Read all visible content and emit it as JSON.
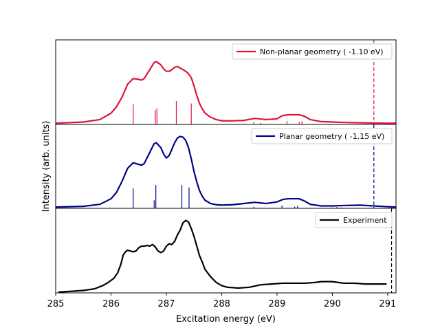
{
  "chart_data": {
    "type": "line",
    "xlabel": "Excitation energy (eV)",
    "ylabel": "Intensity (arb. units)",
    "xlim": [
      285,
      291.15
    ],
    "x_ticks": [
      "285",
      "286",
      "287",
      "288",
      "289",
      "290",
      "291"
    ],
    "x_tick_values": [
      285,
      286,
      287,
      288,
      289,
      290,
      291
    ],
    "panels": [
      {
        "name": "Non-planar geometry ( -1.10 eV)",
        "color": "#dc143c",
        "ylim": [
          0,
          1.05
        ],
        "x": [
          285.0,
          285.5,
          285.8,
          286.0,
          286.1,
          286.2,
          286.3,
          286.4,
          286.5,
          286.55,
          286.6,
          286.7,
          286.78,
          286.82,
          286.9,
          286.95,
          287.0,
          287.05,
          287.1,
          287.15,
          287.2,
          287.25,
          287.3,
          287.35,
          287.4,
          287.45,
          287.5,
          287.55,
          287.6,
          287.65,
          287.7,
          287.8,
          287.9,
          288.0,
          288.2,
          288.4,
          288.6,
          288.8,
          289.0,
          289.1,
          289.2,
          289.3,
          289.4,
          289.5,
          289.6,
          289.8,
          290.0,
          290.2,
          290.5,
          291.0,
          291.15
        ],
        "y": [
          0.015,
          0.03,
          0.06,
          0.14,
          0.22,
          0.34,
          0.5,
          0.57,
          0.56,
          0.55,
          0.57,
          0.68,
          0.77,
          0.78,
          0.74,
          0.69,
          0.66,
          0.66,
          0.68,
          0.71,
          0.72,
          0.7,
          0.68,
          0.66,
          0.63,
          0.58,
          0.48,
          0.36,
          0.26,
          0.19,
          0.14,
          0.09,
          0.06,
          0.045,
          0.045,
          0.05,
          0.075,
          0.06,
          0.07,
          0.11,
          0.12,
          0.12,
          0.12,
          0.1,
          0.06,
          0.035,
          0.03,
          0.025,
          0.02,
          0.015,
          0.015
        ],
        "sticks": [
          {
            "x": 286.4,
            "h": 0.25
          },
          {
            "x": 286.8,
            "h": 0.18
          },
          {
            "x": 286.83,
            "h": 0.2
          },
          {
            "x": 287.18,
            "h": 0.29
          },
          {
            "x": 287.45,
            "h": 0.26
          },
          {
            "x": 288.58,
            "h": 0.03
          },
          {
            "x": 288.7,
            "h": 0.02
          },
          {
            "x": 289.18,
            "h": 0.04
          },
          {
            "x": 289.4,
            "h": 0.03
          },
          {
            "x": 289.45,
            "h": 0.04
          }
        ],
        "threshold": 290.75
      },
      {
        "name": "Planar geometry ( -1.15 eV)",
        "color": "#00008b",
        "ylim": [
          0,
          1.05
        ],
        "x": [
          285.0,
          285.5,
          285.8,
          286.0,
          286.1,
          286.2,
          286.3,
          286.4,
          286.5,
          286.55,
          286.6,
          286.7,
          286.78,
          286.82,
          286.9,
          286.95,
          287.0,
          287.05,
          287.1,
          287.15,
          287.2,
          287.25,
          287.3,
          287.35,
          287.4,
          287.45,
          287.5,
          287.55,
          287.6,
          287.65,
          287.7,
          287.8,
          287.9,
          288.0,
          288.2,
          288.4,
          288.6,
          288.8,
          289.0,
          289.1,
          289.2,
          289.3,
          289.4,
          289.5,
          289.6,
          289.8,
          290.0,
          290.2,
          290.5,
          291.0,
          291.15
        ],
        "y": [
          0.015,
          0.025,
          0.05,
          0.12,
          0.2,
          0.34,
          0.5,
          0.57,
          0.55,
          0.54,
          0.56,
          0.7,
          0.81,
          0.82,
          0.76,
          0.68,
          0.63,
          0.66,
          0.74,
          0.82,
          0.88,
          0.9,
          0.89,
          0.85,
          0.76,
          0.62,
          0.46,
          0.33,
          0.22,
          0.15,
          0.1,
          0.06,
          0.045,
          0.04,
          0.045,
          0.06,
          0.075,
          0.06,
          0.08,
          0.11,
          0.12,
          0.12,
          0.12,
          0.09,
          0.05,
          0.03,
          0.03,
          0.035,
          0.04,
          0.02,
          0.015
        ],
        "sticks": [
          {
            "x": 286.4,
            "h": 0.25
          },
          {
            "x": 286.78,
            "h": 0.1
          },
          {
            "x": 286.81,
            "h": 0.29
          },
          {
            "x": 287.28,
            "h": 0.29
          },
          {
            "x": 287.41,
            "h": 0.26
          },
          {
            "x": 288.58,
            "h": 0.02
          },
          {
            "x": 289.09,
            "h": 0.035
          },
          {
            "x": 289.32,
            "h": 0.02
          },
          {
            "x": 289.37,
            "h": 0.03
          },
          {
            "x": 290.0,
            "h": 0.01
          },
          {
            "x": 290.08,
            "h": 0.015
          },
          {
            "x": 290.16,
            "h": 0.01
          }
        ],
        "threshold": 290.75
      },
      {
        "name": "Experiment",
        "color": "#000000",
        "ylim": [
          0,
          1.05
        ],
        "x": [
          285.05,
          285.3,
          285.5,
          285.7,
          285.85,
          285.95,
          286.05,
          286.12,
          286.18,
          286.22,
          286.26,
          286.3,
          286.4,
          286.45,
          286.5,
          286.55,
          286.6,
          286.65,
          286.7,
          286.75,
          286.8,
          286.85,
          286.9,
          286.95,
          287.0,
          287.05,
          287.1,
          287.15,
          287.2,
          287.25,
          287.3,
          287.35,
          287.4,
          287.45,
          287.5,
          287.55,
          287.6,
          287.65,
          287.7,
          287.8,
          287.9,
          288.0,
          288.1,
          288.3,
          288.5,
          288.7,
          288.9,
          289.1,
          289.3,
          289.5,
          289.7,
          289.8,
          290.0,
          290.2,
          290.4,
          290.6,
          290.8,
          290.98
        ],
        "y": [
          0.01,
          0.02,
          0.03,
          0.05,
          0.09,
          0.13,
          0.18,
          0.25,
          0.36,
          0.47,
          0.51,
          0.53,
          0.51,
          0.52,
          0.56,
          0.58,
          0.58,
          0.59,
          0.58,
          0.6,
          0.57,
          0.52,
          0.5,
          0.52,
          0.58,
          0.61,
          0.6,
          0.64,
          0.72,
          0.78,
          0.87,
          0.9,
          0.88,
          0.8,
          0.7,
          0.58,
          0.46,
          0.38,
          0.29,
          0.2,
          0.13,
          0.09,
          0.07,
          0.06,
          0.07,
          0.1,
          0.11,
          0.12,
          0.12,
          0.12,
          0.13,
          0.14,
          0.14,
          0.12,
          0.12,
          0.11,
          0.11,
          0.11
        ],
        "sticks": [],
        "threshold": 291.07
      }
    ]
  }
}
